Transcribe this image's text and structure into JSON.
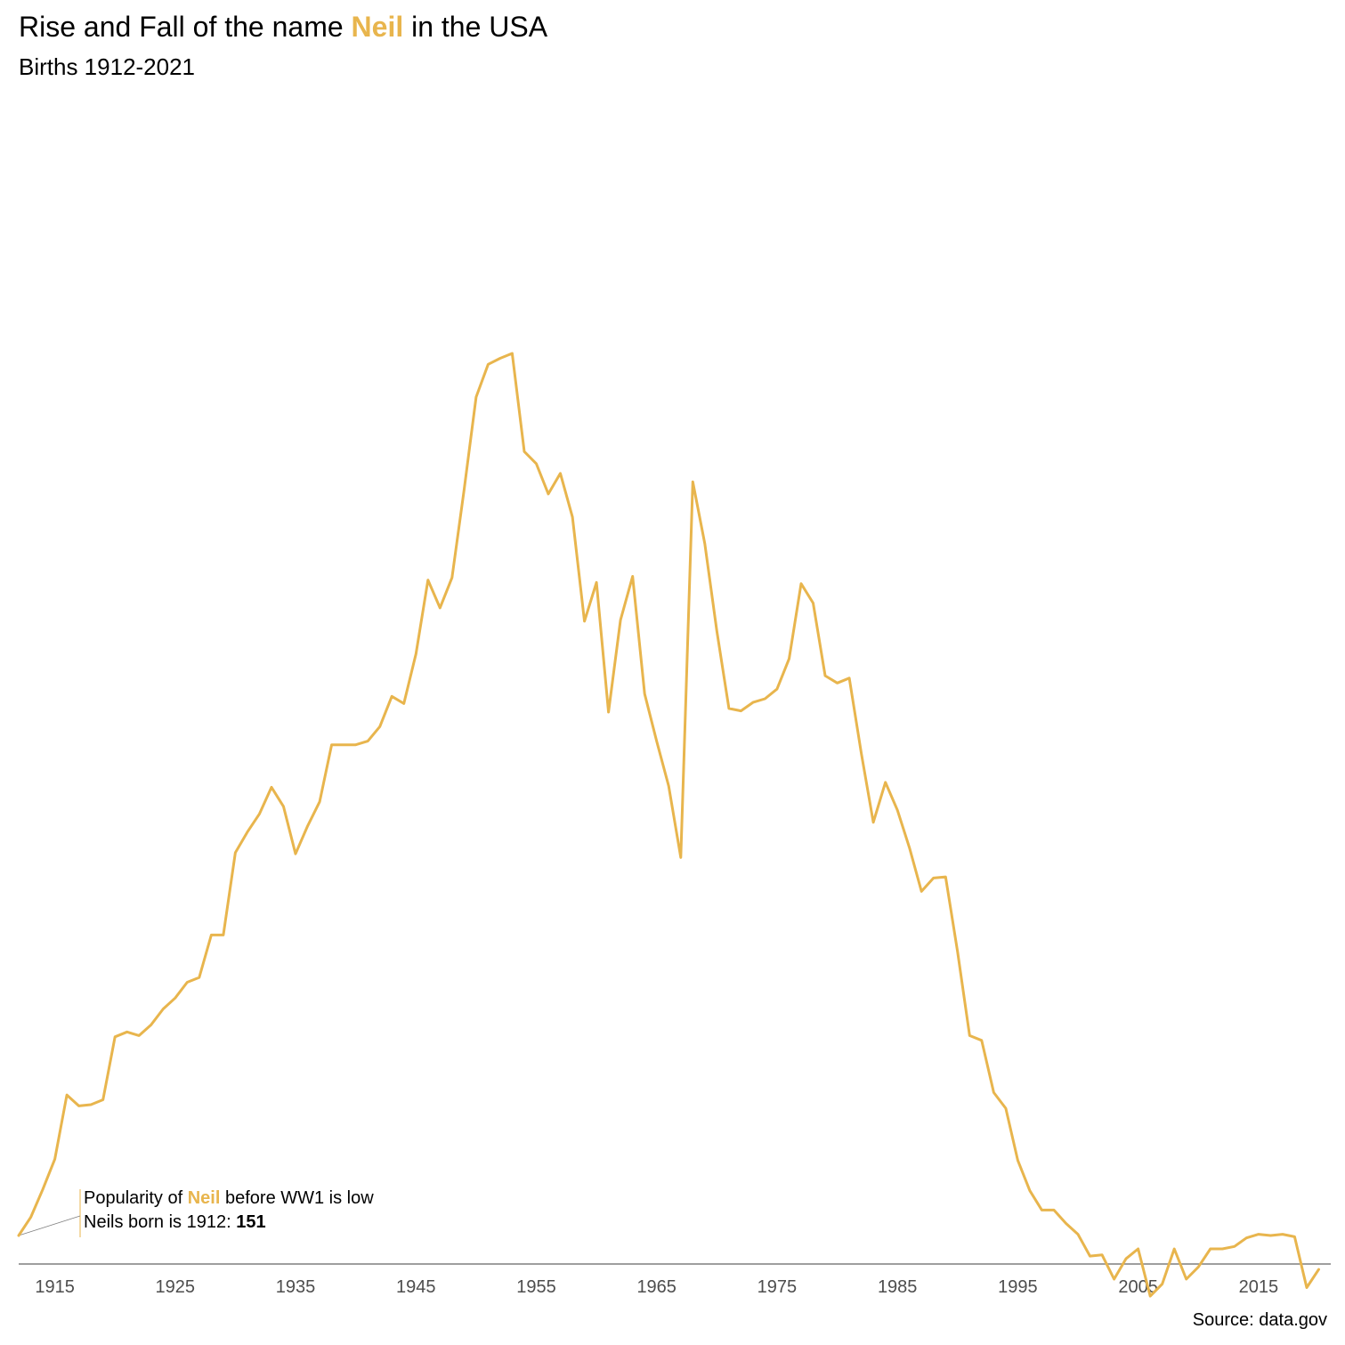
{
  "header": {
    "title_before": "Rise and Fall of the name ",
    "title_name": "Neil",
    "title_after": " in the USA",
    "subtitle": "Births 1912-2021"
  },
  "annotation": {
    "line1_before": "Popularity of ",
    "line1_name": "Neil",
    "line1_after": " before WW1 is low",
    "line2_before": "Neils born is 1912: ",
    "line2_value": "151"
  },
  "source": "Source: data.gov",
  "colors": {
    "line": "#E8B54D",
    "axis": "#7f7f7f",
    "ticks": "#4d4d4d"
  },
  "chart_data": {
    "type": "line",
    "title": "Rise and Fall of the name Neil in the USA",
    "subtitle": "Births 1912-2021",
    "xlabel": "",
    "ylabel": "",
    "xlim": [
      1912,
      2021
    ],
    "ylim": [
      151,
      1048
    ],
    "x_ticks": [
      1915,
      1925,
      1935,
      1945,
      1955,
      1965,
      1975,
      1985,
      1995,
      2005,
      2015
    ],
    "grid": false,
    "series": [
      {
        "x": [
          1912,
          1913,
          1914,
          1915,
          1916,
          1917,
          1918,
          1919,
          1920,
          1921,
          1922,
          1923,
          1924,
          1925,
          1926,
          1927,
          1928,
          1929,
          1930,
          1931,
          1932,
          1933,
          1934,
          1935,
          1936,
          1937,
          1938,
          1939,
          1940,
          1941,
          1942,
          1943,
          1944,
          1945,
          1946,
          1947,
          1948,
          1949,
          1950,
          1951,
          1952,
          1953,
          1954,
          1955,
          1956,
          1957,
          1958,
          1959,
          1960,
          1961,
          1962,
          1963,
          1964,
          1965,
          1966,
          1967,
          1968,
          1969,
          1970,
          1971,
          1972,
          1973,
          1974,
          1975,
          1976,
          1977,
          1978,
          1979,
          1980,
          1981,
          1982,
          1983,
          1984,
          1985,
          1986,
          1987,
          1988,
          1989,
          1990,
          1991,
          1992,
          1993,
          1994,
          1995,
          1996,
          1997,
          1998,
          1999,
          2000,
          2001,
          2002,
          2003,
          2004,
          2005,
          2006,
          2007,
          2008,
          2009,
          2010,
          2011,
          2012,
          2013,
          2014,
          2015,
          2016,
          2017,
          2018,
          2019,
          2020,
          2021
        ],
        "values": [
          151,
          166,
          189,
          214,
          267,
          258,
          259,
          263,
          315,
          319,
          316,
          325,
          338,
          347,
          360,
          364,
          399,
          399,
          467,
          484,
          499,
          521,
          505,
          466,
          489,
          509,
          556,
          556,
          556,
          559,
          571,
          596,
          590,
          631,
          692,
          669,
          694,
          766,
          843,
          870,
          875,
          879,
          798,
          788,
          763,
          780,
          744,
          658,
          690,
          583,
          659,
          695,
          598,
          559,
          522,
          463,
          773,
          722,
          650,
          586,
          584,
          591,
          594,
          602,
          627,
          689,
          673,
          613,
          607,
          611,
          549,
          492,
          525,
          502,
          471,
          435,
          446,
          447,
          385,
          316,
          312,
          269,
          256,
          213,
          188,
          172,
          172,
          161,
          152,
          134,
          135,
          115,
          132,
          140,
          101,
          111,
          140,
          115,
          125,
          140,
          140,
          142,
          149,
          152,
          151,
          152,
          150,
          108,
          123,
          null
        ]
      }
    ]
  }
}
